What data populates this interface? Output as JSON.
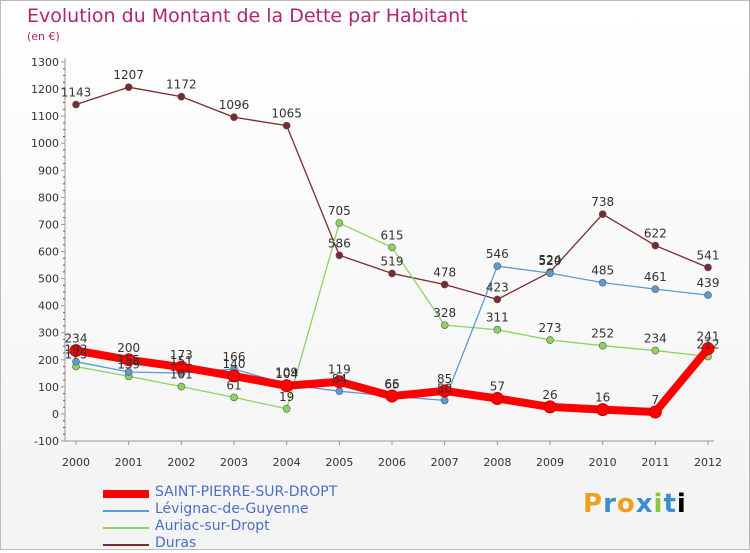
{
  "header": {
    "title": "Evolution du Montant de la Dette par Habitant",
    "subtitle": "(en €)"
  },
  "logo": {
    "text": "Proxiti"
  },
  "chart_data": {
    "type": "line",
    "title": "Evolution du Montant de la Dette par Habitant",
    "ylabel": "(en €)",
    "xlabel": "",
    "ylim": [
      -100,
      1300
    ],
    "yticks": [
      -100,
      0,
      100,
      200,
      300,
      400,
      500,
      600,
      700,
      800,
      900,
      1000,
      1100,
      1200,
      1300
    ],
    "grid": false,
    "legend_position": "bottom-left",
    "x": [
      "2000",
      "2001",
      "2002",
      "2003",
      "2004",
      "2005",
      "2006",
      "2007",
      "2008",
      "2009",
      "2010",
      "2011",
      "2012"
    ],
    "series": [
      {
        "name": "SAINT-PIERRE-SUR-DROPT",
        "color": "#ff0000",
        "emphasis": true,
        "values": [
          234,
          200,
          173,
          140,
          104,
          119,
          66,
          85,
          57,
          26,
          16,
          7,
          241
        ],
        "labels": [
          "234",
          "200",
          "173",
          "140",
          "104",
          "119",
          "66",
          "85",
          "57",
          "26",
          "16",
          "7",
          "241"
        ]
      },
      {
        "name": "Lévignac-de-Guyenne",
        "color": "#5b9bd5",
        "emphasis": false,
        "values": [
          193,
          155,
          151,
          166,
          109,
          84,
          65,
          50,
          546,
          520,
          485,
          461,
          439
        ],
        "labels": [
          "193",
          "155",
          "151",
          "166",
          "109",
          "84",
          "65",
          "50",
          "546",
          "520",
          "485",
          "461",
          "439"
        ]
      },
      {
        "name": "Auriac-sur-Dropt",
        "color": "#8cd35f",
        "emphasis": false,
        "values": [
          175,
          139,
          101,
          61,
          19,
          705,
          615,
          328,
          311,
          273,
          252,
          234,
          212
        ],
        "labels": [
          "175",
          "139",
          "101",
          "61",
          "19",
          "705",
          "615",
          "328",
          "311",
          "273",
          "252",
          "234",
          "212"
        ]
      },
      {
        "name": "Duras",
        "color": "#7b2a2f",
        "emphasis": false,
        "values": [
          1143,
          1207,
          1172,
          1096,
          1065,
          586,
          519,
          478,
          423,
          524,
          738,
          622,
          541
        ],
        "labels": [
          "1143",
          "1207",
          "1172",
          "1096",
          "1065",
          "586",
          "519",
          "478",
          "423",
          "524",
          "738",
          "622",
          "541"
        ]
      }
    ]
  }
}
